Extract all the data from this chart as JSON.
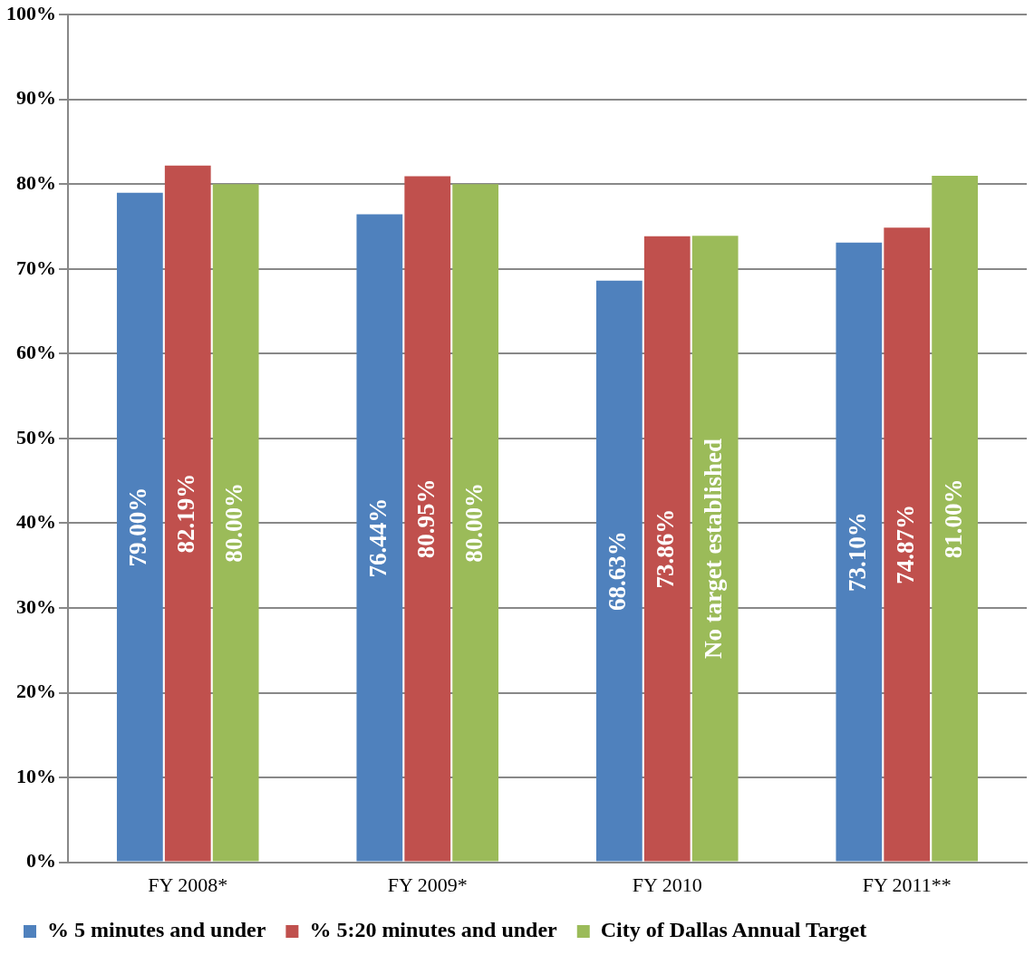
{
  "chart_data": {
    "type": "bar",
    "categories": [
      "FY 2008*",
      "FY 2009*",
      "FY 2010",
      "FY 2011**"
    ],
    "series": [
      {
        "name": "% 5 minutes and under",
        "color": "#4f81bd",
        "values": [
          79.0,
          76.44,
          68.63,
          73.1
        ],
        "value_labels": [
          "79.00%",
          "76.44%",
          "68.63%",
          "73.10%"
        ]
      },
      {
        "name": "% 5:20 minutes and under",
        "color": "#c0504d",
        "values": [
          82.19,
          80.95,
          73.86,
          74.87
        ],
        "value_labels": [
          "82.19%",
          "80.95%",
          "73.86%",
          "74.87%"
        ]
      },
      {
        "name": "City of Dallas Annual Target",
        "color": "#9bbb59",
        "values": [
          80.0,
          80.0,
          73.9,
          81.0
        ],
        "value_labels": [
          "80.00%",
          "80.00%",
          "No target established",
          "81.00%"
        ]
      }
    ],
    "ylim": [
      0,
      100
    ],
    "yticks": [
      {
        "value": 0,
        "label": "0%"
      },
      {
        "value": 10,
        "label": "10%"
      },
      {
        "value": 20,
        "label": "20%"
      },
      {
        "value": 30,
        "label": "30%"
      },
      {
        "value": 40,
        "label": "40%"
      },
      {
        "value": 50,
        "label": "50%"
      },
      {
        "value": 60,
        "label": "60%"
      },
      {
        "value": 70,
        "label": "70%"
      },
      {
        "value": 80,
        "label": "80%"
      },
      {
        "value": 90,
        "label": "90%"
      },
      {
        "value": 100,
        "label": "100%"
      }
    ],
    "grid": "y",
    "legend": "bottom"
  }
}
